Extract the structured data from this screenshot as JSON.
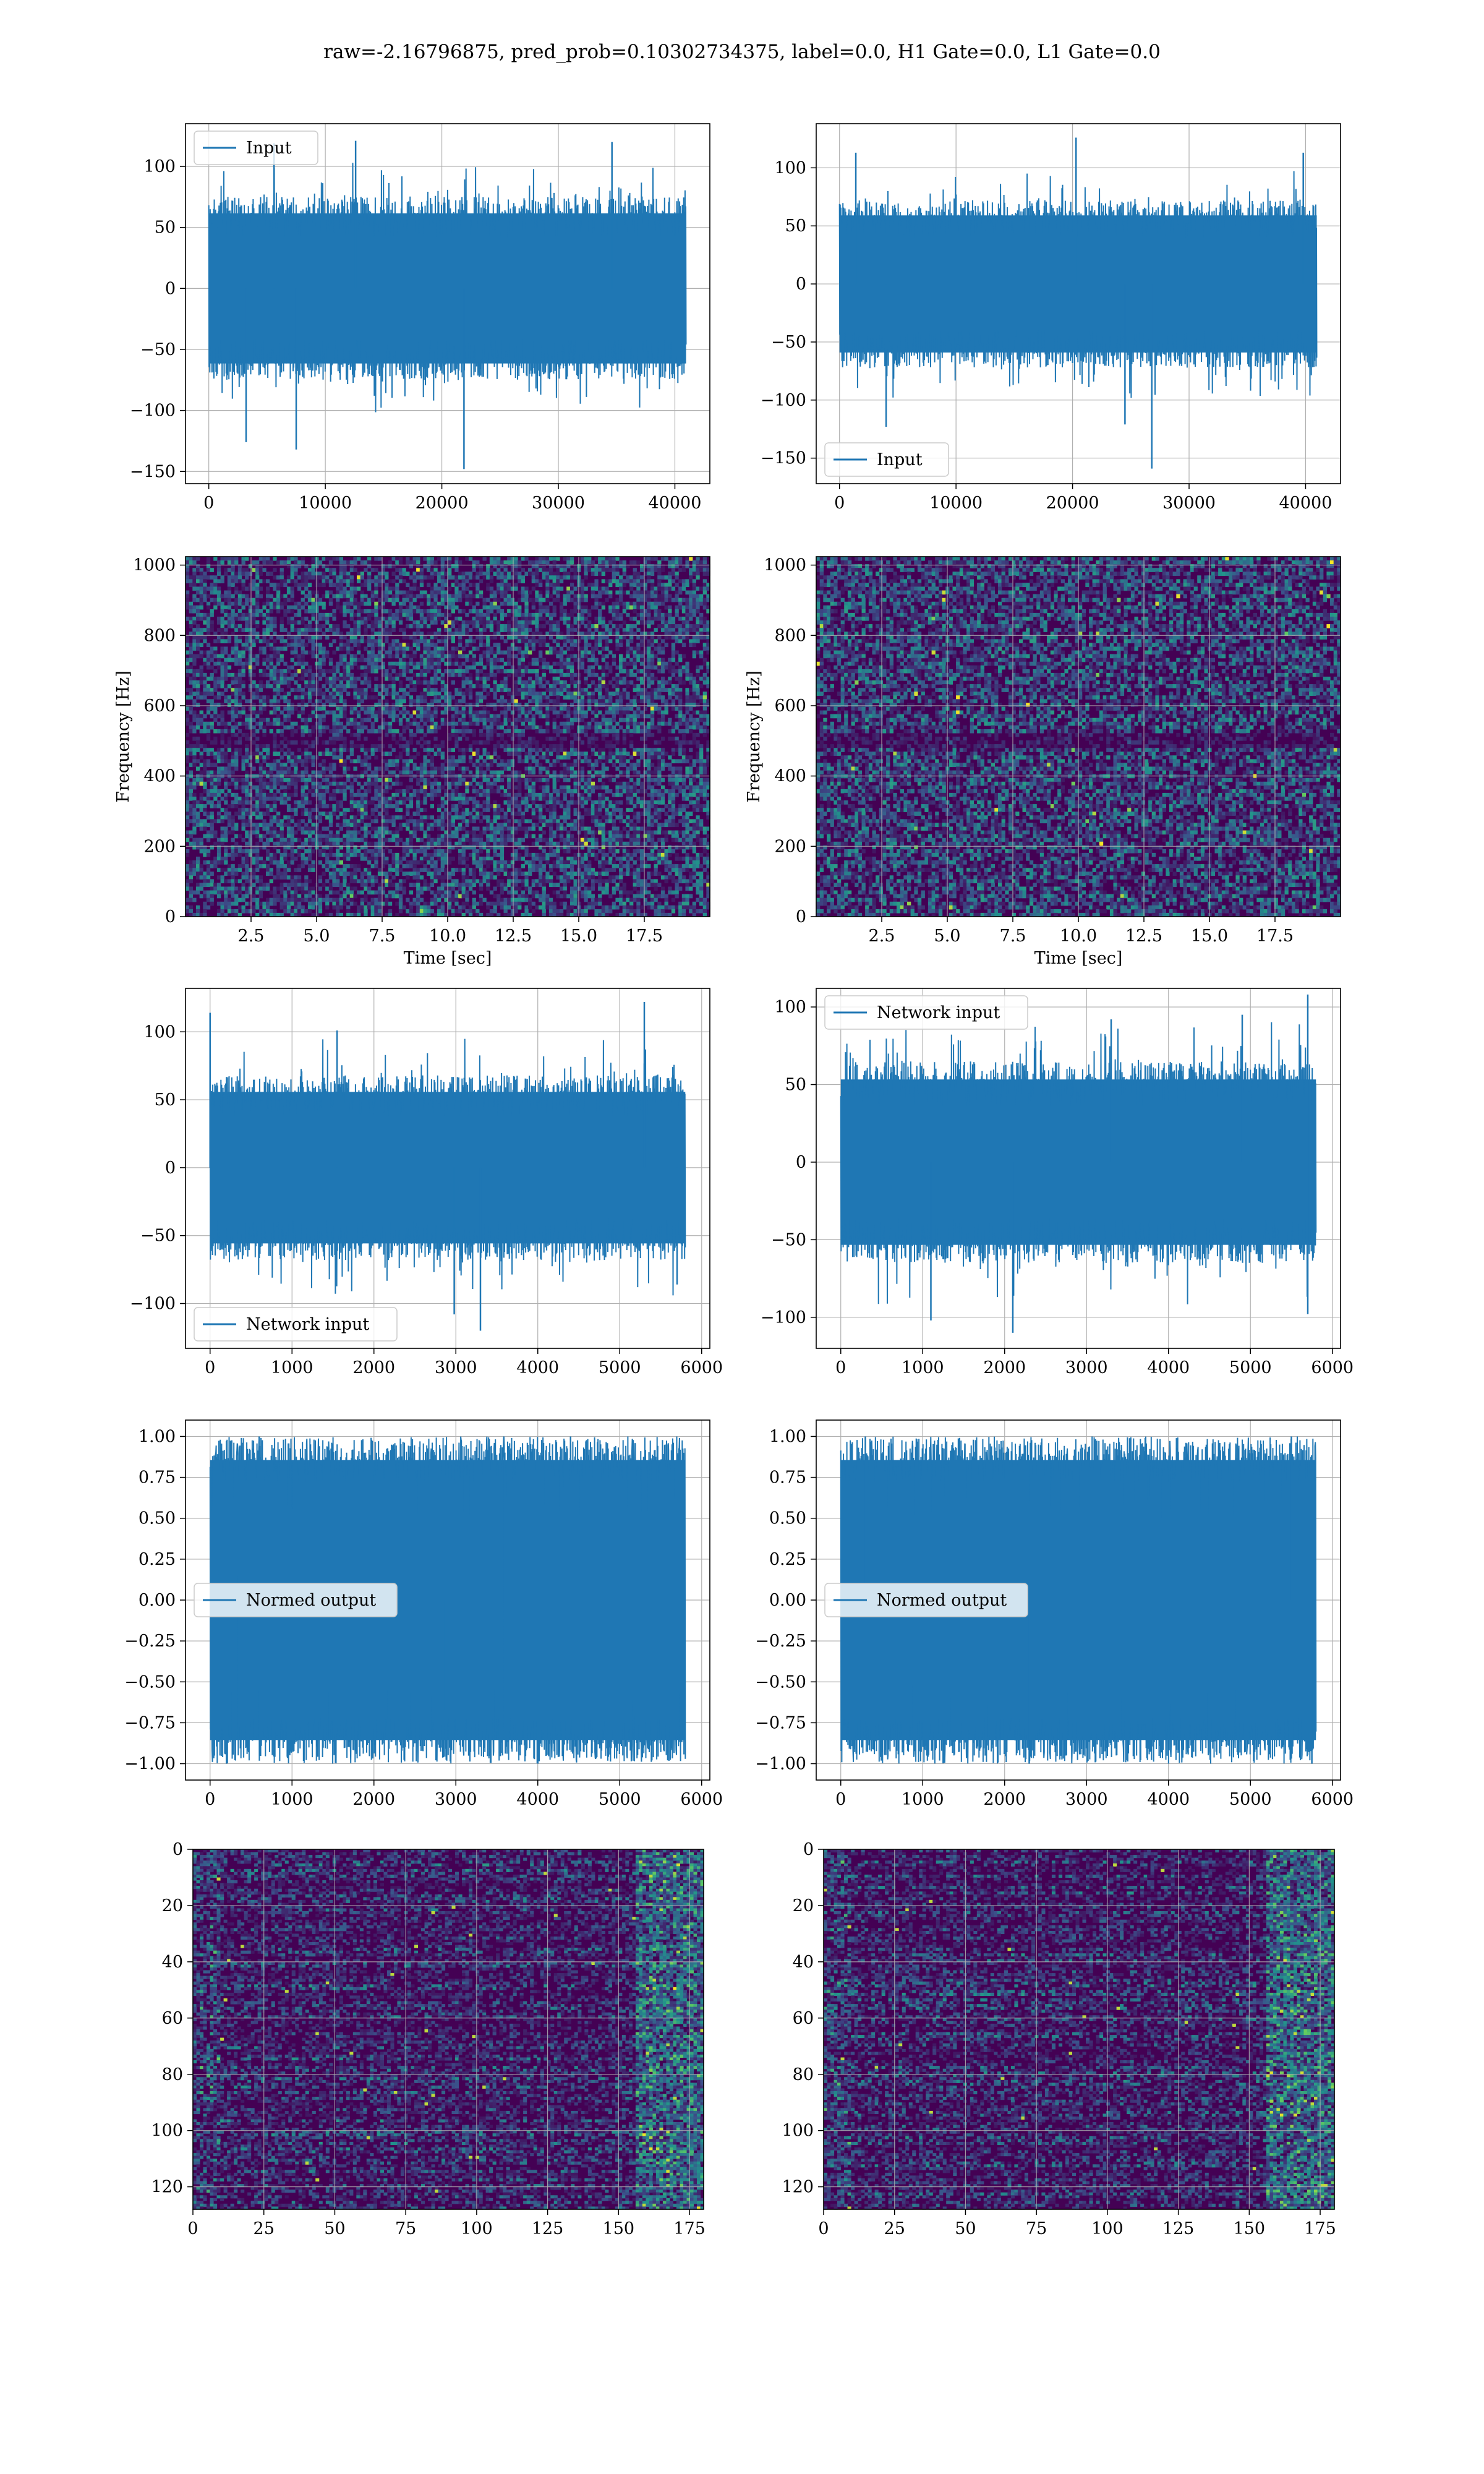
{
  "figure": {
    "title": "raw=-2.16796875, pred_prob=0.10302734375, label=0.0, H1 Gate=0.0, L1 Gate=0.0"
  },
  "colors": {
    "line": "#1f77b4",
    "grid": "#b0b0b0",
    "viridis_dark": "#440154",
    "viridis_mid": "#21918c",
    "viridis_bright": "#fde725"
  },
  "chart_data": [
    {
      "id": "input-h1",
      "type": "line",
      "legend": [
        "Input"
      ],
      "legend_loc": "upper-left",
      "xlim": [
        -2000,
        43000
      ],
      "ylim": [
        -160,
        135
      ],
      "xticks": [
        0,
        10000,
        20000,
        30000,
        40000
      ],
      "yticks": [
        -150,
        -100,
        -50,
        0,
        50,
        100
      ],
      "x_range": [
        0,
        40959
      ],
      "envelope": [
        -75,
        75
      ],
      "peaks": [
        {
          "x": 5600,
          "y": 119
        },
        {
          "x": 12600,
          "y": 121
        },
        {
          "x": 34600,
          "y": 120
        },
        {
          "x": 21900,
          "y": -148
        },
        {
          "x": 7500,
          "y": -132
        },
        {
          "x": 3200,
          "y": -126
        }
      ],
      "grid": true
    },
    {
      "id": "input-l1",
      "type": "line",
      "legend": [
        "Input"
      ],
      "legend_loc": "lower-left",
      "xlim": [
        -2000,
        43000
      ],
      "ylim": [
        -172,
        138
      ],
      "xticks": [
        0,
        10000,
        20000,
        30000,
        40000
      ],
      "yticks": [
        -150,
        -100,
        -50,
        0,
        50,
        100
      ],
      "x_range": [
        0,
        40959
      ],
      "envelope": [
        -72,
        72
      ],
      "peaks": [
        {
          "x": 20300,
          "y": 126
        },
        {
          "x": 39800,
          "y": 113
        },
        {
          "x": 1400,
          "y": 113
        },
        {
          "x": 26800,
          "y": -159
        },
        {
          "x": 4000,
          "y": -123
        },
        {
          "x": 24500,
          "y": -121
        }
      ],
      "grid": true
    },
    {
      "id": "spectrogram-h1",
      "type": "heatmap",
      "xlabel": "Time [sec]",
      "ylabel": "Frequency [Hz]",
      "xlim": [
        0,
        20
      ],
      "ylim": [
        0,
        1024
      ],
      "xticks": [
        "2.5",
        "5.0",
        "7.5",
        "10.0",
        "12.5",
        "15.0",
        "17.5"
      ],
      "yticks": [
        "0",
        "200",
        "400",
        "600",
        "800",
        "1000"
      ],
      "grid": true
    },
    {
      "id": "spectrogram-l1",
      "type": "heatmap",
      "xlabel": "Time [sec]",
      "ylabel": "Frequency [Hz]",
      "xlim": [
        0,
        20
      ],
      "ylim": [
        0,
        1024
      ],
      "xticks": [
        "2.5",
        "5.0",
        "7.5",
        "10.0",
        "12.5",
        "15.0",
        "17.5"
      ],
      "yticks": [
        "0",
        "200",
        "400",
        "600",
        "800",
        "1000"
      ],
      "grid": true
    },
    {
      "id": "network-input-h1",
      "type": "line",
      "legend": [
        "Network input"
      ],
      "legend_loc": "lower-left",
      "xlim": [
        -300,
        6100
      ],
      "ylim": [
        -133,
        132
      ],
      "xticks": [
        0,
        1000,
        2000,
        3000,
        4000,
        5000,
        6000
      ],
      "yticks": [
        -100,
        -50,
        0,
        50,
        100
      ],
      "x_range": [
        0,
        5800
      ],
      "envelope": [
        -68,
        68
      ],
      "peaks": [
        {
          "x": 0,
          "y": 114
        },
        {
          "x": 5300,
          "y": 122
        },
        {
          "x": 1550,
          "y": 101
        },
        {
          "x": 3300,
          "y": -120
        },
        {
          "x": 2980,
          "y": -108
        },
        {
          "x": 5700,
          "y": -86
        }
      ],
      "grid": true
    },
    {
      "id": "network-input-l1",
      "type": "line",
      "legend": [
        "Network input"
      ],
      "legend_loc": "upper-left",
      "xlim": [
        -300,
        6100
      ],
      "ylim": [
        -120,
        112
      ],
      "xticks": [
        0,
        1000,
        2000,
        3000,
        4000,
        5000,
        6000
      ],
      "yticks": [
        -100,
        -50,
        0,
        50,
        100
      ],
      "x_range": [
        0,
        5800
      ],
      "envelope": [
        -65,
        65
      ],
      "peaks": [
        {
          "x": 5700,
          "y": 108
        },
        {
          "x": 4900,
          "y": 95
        },
        {
          "x": 3300,
          "y": 92
        },
        {
          "x": 2100,
          "y": -110
        },
        {
          "x": 1100,
          "y": -102
        },
        {
          "x": 5700,
          "y": -98
        }
      ],
      "grid": true
    },
    {
      "id": "normed-output-h1",
      "type": "line",
      "legend": [
        "Normed output"
      ],
      "legend_loc": "center-left",
      "xlim": [
        -300,
        6100
      ],
      "ylim": [
        -1.1,
        1.1
      ],
      "xticks": [
        0,
        1000,
        2000,
        3000,
        4000,
        5000,
        6000
      ],
      "yticks": [
        "-1.00",
        "-0.75",
        "-0.50",
        "-0.25",
        "0.00",
        "0.25",
        "0.50",
        "0.75",
        "1.00"
      ],
      "x_range": [
        0,
        5800
      ],
      "envelope": [
        -0.93,
        0.93
      ],
      "peaks": [
        {
          "x": 600,
          "y": 1.0
        },
        {
          "x": 4400,
          "y": 1.0
        },
        {
          "x": 2850,
          "y": -0.67
        },
        {
          "x": 200,
          "y": -1.0
        },
        {
          "x": 4000,
          "y": -1.0
        }
      ],
      "grid": true
    },
    {
      "id": "normed-output-l1",
      "type": "line",
      "legend": [
        "Normed output"
      ],
      "legend_loc": "center-left",
      "xlim": [
        -300,
        6100
      ],
      "ylim": [
        -1.1,
        1.1
      ],
      "xticks": [
        0,
        1000,
        2000,
        3000,
        4000,
        5000,
        6000
      ],
      "yticks": [
        "-1.00",
        "-0.75",
        "-0.50",
        "-0.25",
        "0.00",
        "0.25",
        "0.50",
        "0.75",
        "1.00"
      ],
      "x_range": [
        0,
        5800
      ],
      "envelope": [
        -0.93,
        0.93
      ],
      "peaks": [
        {
          "x": 300,
          "y": 1.0
        },
        {
          "x": 5500,
          "y": 1.0
        },
        {
          "x": 2300,
          "y": -1.0
        },
        {
          "x": 5750,
          "y": -1.0
        }
      ],
      "grid": true
    },
    {
      "id": "features-h1",
      "type": "heatmap",
      "xlim": [
        0,
        180
      ],
      "ylim": [
        128,
        0
      ],
      "xticks": [
        "0",
        "25",
        "50",
        "75",
        "100",
        "125",
        "150",
        "175"
      ],
      "yticks": [
        "0",
        "20",
        "40",
        "60",
        "80",
        "100",
        "120"
      ],
      "grid": true
    },
    {
      "id": "features-l1",
      "type": "heatmap",
      "xlim": [
        0,
        180
      ],
      "ylim": [
        128,
        0
      ],
      "xticks": [
        "0",
        "25",
        "50",
        "75",
        "100",
        "125",
        "150",
        "175"
      ],
      "yticks": [
        "0",
        "20",
        "40",
        "60",
        "80",
        "100",
        "120"
      ],
      "grid": true
    }
  ]
}
